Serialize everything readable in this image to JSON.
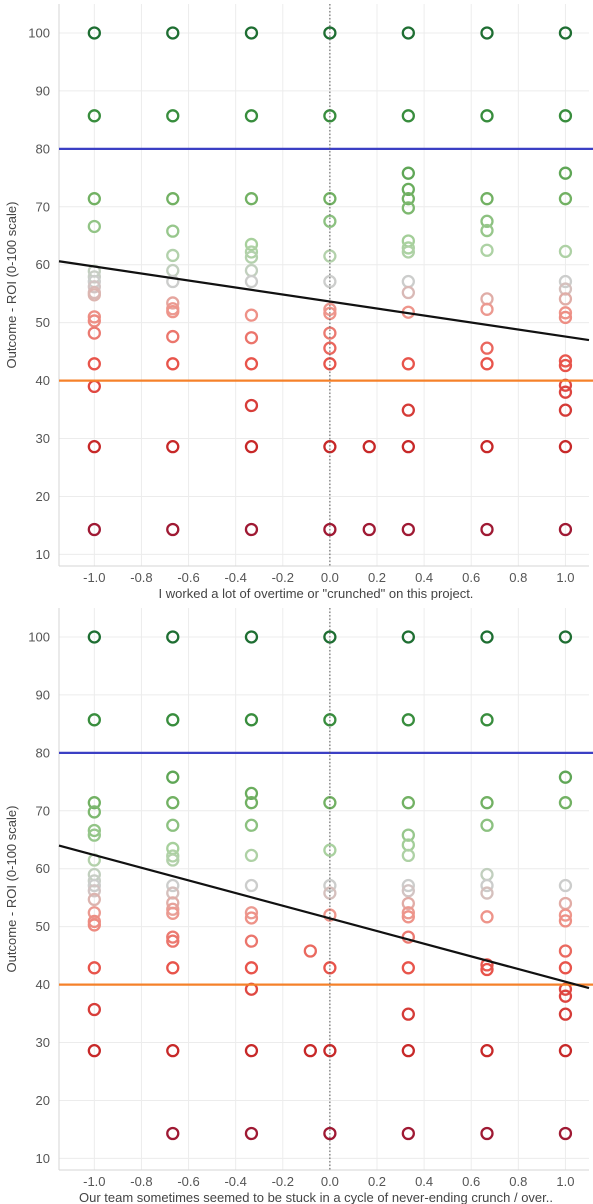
{
  "chart_data": [
    {
      "type": "scatter",
      "title": "",
      "xlabel": "I worked a lot of overtime or \"crunched\" on this project.",
      "ylabel": "Outcome - ROI (0-100 scale)",
      "xlim": [
        -1.15,
        1.1
      ],
      "ylim": [
        8,
        105
      ],
      "xticks": [
        "-1.0",
        "-0.8",
        "-0.6",
        "-0.4",
        "-0.2",
        "0.0",
        "0.2",
        "0.4",
        "0.6",
        "0.8",
        "1.0"
      ],
      "yticks": [
        "10",
        "20",
        "30",
        "40",
        "50",
        "60",
        "70",
        "80",
        "90",
        "100"
      ],
      "grid": true,
      "reference_lines": [
        {
          "axis": "y",
          "value": 80,
          "color": "#3b3fc4"
        },
        {
          "axis": "y",
          "value": 40,
          "color": "#f5812a"
        },
        {
          "axis": "x",
          "value": 0,
          "color": "#555555",
          "style": "dotted"
        }
      ],
      "trend_line": {
        "x": [
          -1.15,
          1.1
        ],
        "y": [
          60.6,
          47.0
        ],
        "color": "#111111"
      },
      "points": [
        {
          "x": -1.0,
          "y": [
            100,
            85.7,
            71.4,
            66.6,
            58.9,
            57.9,
            57.1,
            56.2,
            55.2,
            54.8,
            51.0,
            50.3,
            48.2,
            42.9,
            39.0,
            28.6,
            14.3
          ]
        },
        {
          "x": -0.667,
          "y": [
            100,
            85.7,
            71.4,
            65.8,
            61.6,
            59.0,
            57.1,
            53.4,
            52.4,
            51.9,
            47.6,
            42.9,
            28.6,
            14.3
          ]
        },
        {
          "x": -0.333,
          "y": [
            100,
            85.7,
            71.4,
            63.5,
            62.2,
            61.3,
            59.0,
            57.1,
            51.3,
            47.4,
            42.9,
            35.7,
            28.6,
            14.3
          ]
        },
        {
          "x": 0.0,
          "y": [
            100,
            85.7,
            71.4,
            67.5,
            61.5,
            57.1,
            52.3,
            51.6,
            48.2,
            45.6,
            42.9,
            28.6,
            14.3
          ]
        },
        {
          "x": 0.167,
          "y": [
            28.6,
            14.3
          ]
        },
        {
          "x": 0.333,
          "y": [
            100,
            85.7,
            75.8,
            73.0,
            71.4,
            69.8,
            64.1,
            62.9,
            62.2,
            57.1,
            55.2,
            51.8,
            42.9,
            34.9,
            28.6,
            14.3
          ]
        },
        {
          "x": 0.667,
          "y": [
            100,
            85.7,
            71.4,
            67.5,
            65.9,
            62.5,
            54.1,
            52.3,
            45.6,
            42.9,
            28.6,
            14.3
          ]
        },
        {
          "x": 1.0,
          "y": [
            100,
            85.7,
            75.8,
            71.4,
            62.3,
            57.1,
            55.8,
            54.1,
            51.7,
            50.9,
            43.4,
            42.6,
            39.2,
            38.0,
            34.9,
            28.6,
            14.3
          ]
        }
      ]
    },
    {
      "type": "scatter",
      "title": "",
      "xlabel": "Our team sometimes seemed to be stuck in a cycle of never-ending crunch / over..",
      "ylabel": "Outcome - ROI (0-100 scale)",
      "xlim": [
        -1.15,
        1.1
      ],
      "ylim": [
        8,
        105
      ],
      "xticks": [
        "-1.0",
        "-0.8",
        "-0.6",
        "-0.4",
        "-0.2",
        "0.0",
        "0.2",
        "0.4",
        "0.6",
        "0.8",
        "1.0"
      ],
      "yticks": [
        "10",
        "20",
        "30",
        "40",
        "50",
        "60",
        "70",
        "80",
        "90",
        "100"
      ],
      "grid": true,
      "reference_lines": [
        {
          "axis": "y",
          "value": 80,
          "color": "#3b3fc4"
        },
        {
          "axis": "y",
          "value": 40,
          "color": "#f5812a"
        },
        {
          "axis": "x",
          "value": 0,
          "color": "#555555",
          "style": "dotted"
        }
      ],
      "trend_line": {
        "x": [
          -1.15,
          1.1
        ],
        "y": [
          64.0,
          39.4
        ],
        "color": "#111111"
      },
      "points": [
        {
          "x": -1.0,
          "y": [
            100,
            85.7,
            71.4,
            69.8,
            66.6,
            65.8,
            61.5,
            59.0,
            57.9,
            57.1,
            56.2,
            54.7,
            52.4,
            50.9,
            50.3,
            42.9,
            35.7,
            28.6
          ]
        },
        {
          "x": -0.667,
          "y": [
            100,
            85.7,
            75.8,
            71.4,
            67.5,
            63.5,
            62.2,
            61.5,
            57.1,
            55.8,
            54.1,
            53.0,
            52.3,
            48.2,
            47.5,
            42.9,
            28.6,
            14.3
          ]
        },
        {
          "x": -0.333,
          "y": [
            100,
            85.7,
            73.0,
            71.4,
            67.5,
            62.3,
            57.1,
            52.4,
            51.5,
            47.5,
            42.9,
            39.2,
            28.6,
            14.3
          ]
        },
        {
          "x": -0.083,
          "y": [
            45.8,
            28.6
          ]
        },
        {
          "x": 0.0,
          "y": [
            100,
            85.7,
            71.4,
            63.2,
            57.1,
            55.8,
            52.0,
            42.9,
            28.6,
            14.3
          ]
        },
        {
          "x": 0.333,
          "y": [
            100,
            85.7,
            71.4,
            65.8,
            64.1,
            62.3,
            57.1,
            56.2,
            54.0,
            52.4,
            51.7,
            48.2,
            42.9,
            34.9,
            28.6,
            14.3
          ]
        },
        {
          "x": 0.667,
          "y": [
            100,
            85.7,
            71.4,
            67.5,
            59.0,
            57.1,
            55.8,
            51.7,
            43.4,
            42.6,
            28.6,
            14.3
          ]
        },
        {
          "x": 1.0,
          "y": [
            100,
            75.8,
            71.4,
            57.1,
            54.0,
            52.0,
            51.0,
            45.8,
            42.9,
            39.2,
            38.0,
            34.9,
            28.6,
            14.3
          ]
        }
      ]
    }
  ]
}
